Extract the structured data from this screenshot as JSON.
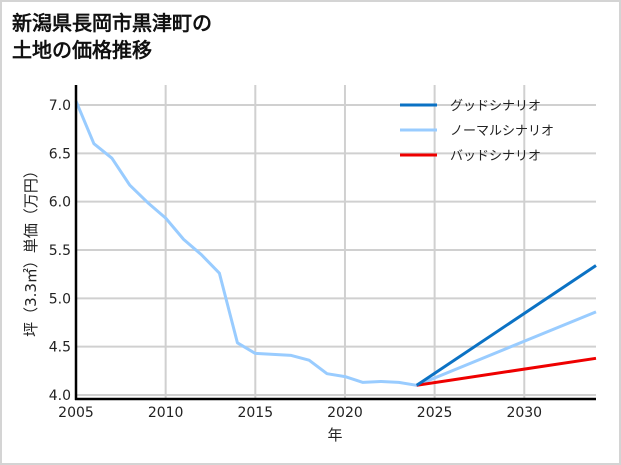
{
  "title": {
    "line1": "新潟県長岡市黒津町の",
    "line2": "土地の価格推移"
  },
  "colors": {
    "good": "#0b72c4",
    "normal": "#99ccff",
    "bad": "#ee0000",
    "grid": "#d0d0d0",
    "axis": "#000000",
    "border": "#d4d4d4"
  },
  "chart_data": {
    "type": "line",
    "title": "新潟県長岡市黒津町の土地の価格推移",
    "xlabel": "年",
    "ylabel": "坪（3.3㎡）単価（万円）",
    "xlim": [
      2005,
      2034
    ],
    "ylim": [
      4.0,
      7.2
    ],
    "xticks": [
      2005,
      2010,
      2015,
      2020,
      2025,
      2030
    ],
    "yticks": [
      4.0,
      4.5,
      5.0,
      5.5,
      6.0,
      6.5,
      7.0
    ],
    "ytick_labels": [
      "4.0",
      "4.5",
      "5.0",
      "5.5",
      "6.0",
      "6.5",
      "7.0"
    ],
    "grid": true,
    "legend_position": "upper right",
    "series": [
      {
        "name": "グッドシナリオ",
        "color": "#0b72c4",
        "x": [
          2024,
          2034
        ],
        "values": [
          4.1,
          5.34
        ]
      },
      {
        "name": "ノーマルシナリオ",
        "color": "#99ccff",
        "x": [
          2005,
          2006,
          2007,
          2008,
          2009,
          2010,
          2011,
          2012,
          2013,
          2014,
          2015,
          2016,
          2017,
          2018,
          2019,
          2020,
          2021,
          2022,
          2023,
          2024,
          2034
        ],
        "values": [
          7.04,
          6.6,
          6.45,
          6.17,
          5.99,
          5.83,
          5.61,
          5.45,
          5.26,
          4.54,
          4.43,
          4.42,
          4.41,
          4.36,
          4.22,
          4.19,
          4.13,
          4.14,
          4.13,
          4.1,
          4.86
        ]
      },
      {
        "name": "バッドシナリオ",
        "color": "#ee0000",
        "x": [
          2024,
          2034
        ],
        "values": [
          4.1,
          4.38
        ]
      }
    ]
  }
}
